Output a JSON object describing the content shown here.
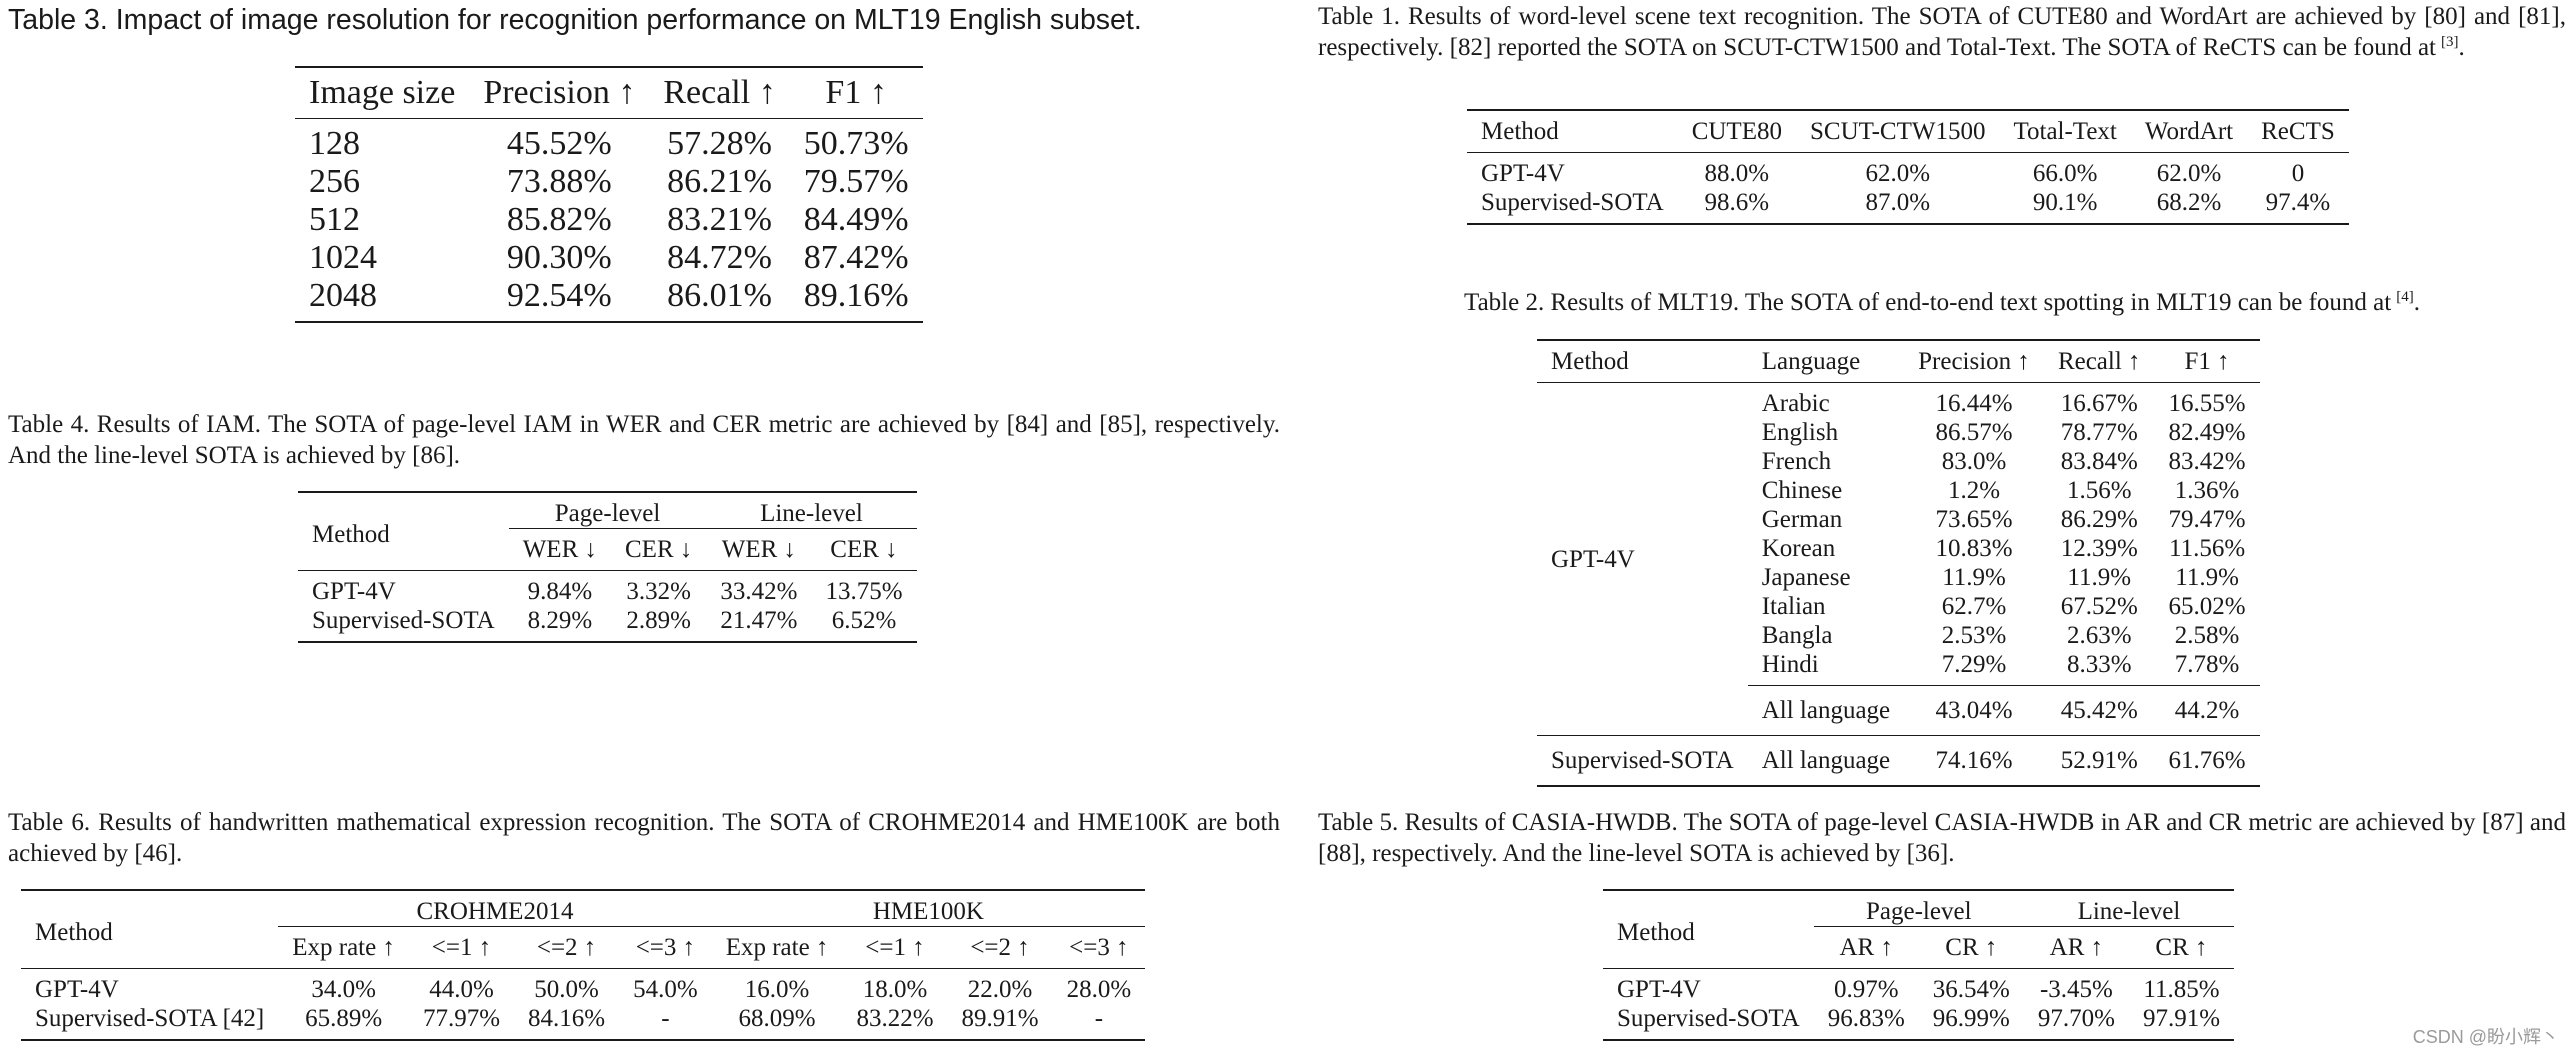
{
  "table3": {
    "caption": "Table 3. Impact of image resolution for recognition performance on MLT19 English subset.",
    "headers": [
      "Image size",
      "Precision ↑",
      "Recall ↑",
      "F1 ↑"
    ],
    "rows": [
      [
        "128",
        "45.52%",
        "57.28%",
        "50.73%"
      ],
      [
        "256",
        "73.88%",
        "86.21%",
        "79.57%"
      ],
      [
        "512",
        "85.82%",
        "83.21%",
        "84.49%"
      ],
      [
        "1024",
        "90.30%",
        "84.72%",
        "87.42%"
      ],
      [
        "2048",
        "92.54%",
        "86.01%",
        "89.16%"
      ]
    ]
  },
  "table1": {
    "caption": "Table 1. Results of word-level scene text recognition. The SOTA of CUTE80 and WordArt are achieved by [80] and [81], respectively. [82] reported the SOTA on SCUT-CTW1500 and Total-Text. The SOTA of ReCTS can be found at",
    "caption_sup": "[3]",
    "caption_end": ".",
    "headers": [
      "Method",
      "CUTE80",
      "SCUT-CTW1500",
      "Total-Text",
      "WordArt",
      "ReCTS"
    ],
    "rows": [
      [
        "GPT-4V",
        "88.0%",
        "62.0%",
        "66.0%",
        "62.0%",
        "0"
      ],
      [
        "Supervised-SOTA",
        "98.6%",
        "87.0%",
        "90.1%",
        "68.2%",
        "97.4%"
      ]
    ]
  },
  "table4": {
    "caption": "Table 4. Results of IAM. The SOTA of page-level IAM in WER and CER metric are achieved by [84] and [85], respectively. And the line-level SOTA is achieved by [86].",
    "method_header": "Method",
    "group_headers": [
      "Page-level",
      "Line-level"
    ],
    "sub_headers": [
      "WER ↓",
      "CER ↓",
      "WER ↓",
      "CER ↓"
    ],
    "rows": [
      [
        "GPT-4V",
        "9.84%",
        "3.32%",
        "33.42%",
        "13.75%"
      ],
      [
        "Supervised-SOTA",
        "8.29%",
        "2.89%",
        "21.47%",
        "6.52%"
      ]
    ]
  },
  "table2": {
    "caption": "Table 2. Results of MLT19. The SOTA of end-to-end text spotting in MLT19 can be found at",
    "caption_sup": "[4]",
    "caption_end": ".",
    "headers": [
      "Method",
      "Language",
      "Precision ↑",
      "Recall ↑",
      "F1 ↑"
    ],
    "gpt_label": "GPT-4V",
    "gpt_rows": [
      [
        "Arabic",
        "16.44%",
        "16.67%",
        "16.55%"
      ],
      [
        "English",
        "86.57%",
        "78.77%",
        "82.49%"
      ],
      [
        "French",
        "83.0%",
        "83.84%",
        "83.42%"
      ],
      [
        "Chinese",
        "1.2%",
        "1.56%",
        "1.36%"
      ],
      [
        "German",
        "73.65%",
        "86.29%",
        "79.47%"
      ],
      [
        "Korean",
        "10.83%",
        "12.39%",
        "11.56%"
      ],
      [
        "Japanese",
        "11.9%",
        "11.9%",
        "11.9%"
      ],
      [
        "Italian",
        "62.7%",
        "67.52%",
        "65.02%"
      ],
      [
        "Bangla",
        "2.53%",
        "2.63%",
        "2.58%"
      ],
      [
        "Hindi",
        "7.29%",
        "8.33%",
        "7.78%"
      ]
    ],
    "gpt_all": [
      "All language",
      "43.04%",
      "45.42%",
      "44.2%"
    ],
    "sota_label": "Supervised-SOTA",
    "sota_all": [
      "All language",
      "74.16%",
      "52.91%",
      "61.76%"
    ]
  },
  "table6": {
    "caption": "Table 6. Results of handwritten mathematical expression recognition. The SOTA of CROHME2014 and HME100K are both achieved by [46].",
    "method_header": "Method",
    "group_headers": [
      "CROHME2014",
      "HME100K"
    ],
    "sub_headers": [
      "Exp rate ↑",
      "<=1 ↑",
      "<=2 ↑",
      "<=3 ↑",
      "Exp rate ↑",
      "<=1 ↑",
      "<=2 ↑",
      "<=3 ↑"
    ],
    "rows": [
      [
        "GPT-4V",
        "34.0%",
        "44.0%",
        "50.0%",
        "54.0%",
        "16.0%",
        "18.0%",
        "22.0%",
        "28.0%"
      ],
      [
        "Supervised-SOTA [42]",
        "65.89%",
        "77.97%",
        "84.16%",
        "-",
        "68.09%",
        "83.22%",
        "89.91%",
        "-"
      ]
    ]
  },
  "table5": {
    "caption": "Table 5. Results of CASIA-HWDB. The SOTA of page-level CASIA-HWDB in AR and CR metric are achieved by [87] and [88], respectively. And the line-level SOTA is achieved by [36].",
    "method_header": "Method",
    "group_headers": [
      "Page-level",
      "Line-level"
    ],
    "sub_headers": [
      "AR ↑",
      "CR ↑",
      "AR ↑",
      "CR ↑"
    ],
    "rows": [
      [
        "GPT-4V",
        "0.97%",
        "36.54%",
        "-3.45%",
        "11.85%"
      ],
      [
        "Supervised-SOTA",
        "96.83%",
        "96.99%",
        "97.70%",
        "97.91%"
      ]
    ]
  },
  "watermark": "CSDN @盼小辉丶"
}
